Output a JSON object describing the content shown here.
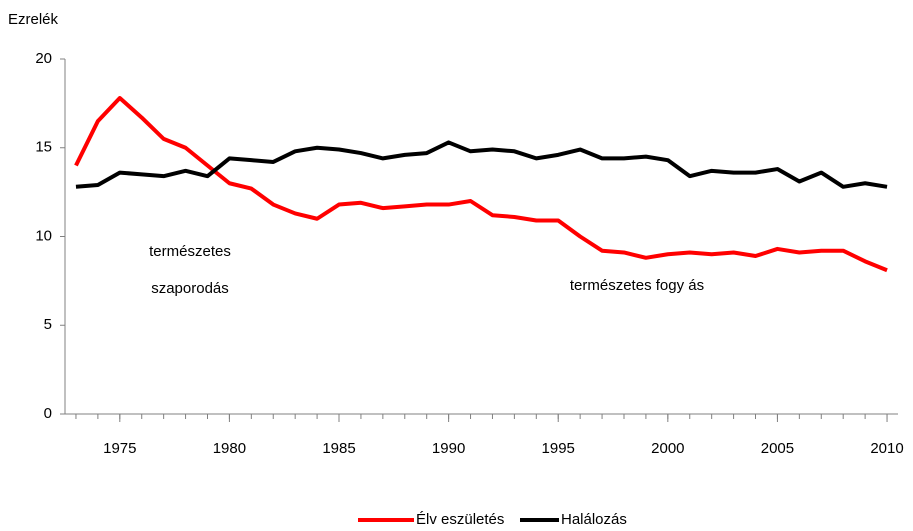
{
  "chart_data": {
    "type": "line",
    "y_label": "Ezrelék",
    "x": [
      1973,
      1974,
      1975,
      1976,
      1977,
      1978,
      1979,
      1980,
      1981,
      1982,
      1983,
      1984,
      1985,
      1986,
      1987,
      1988,
      1989,
      1990,
      1991,
      1992,
      1993,
      1994,
      1995,
      1996,
      1997,
      1998,
      1999,
      2000,
      2001,
      2002,
      2003,
      2004,
      2005,
      2006,
      2007,
      2008,
      2009,
      2010
    ],
    "series": [
      {
        "name": "Élv eszületés",
        "color": "#ff0000",
        "values": [
          14.0,
          16.5,
          17.8,
          16.7,
          15.5,
          15.0,
          14.0,
          13.0,
          12.7,
          11.8,
          11.3,
          11.0,
          11.8,
          11.9,
          11.6,
          11.7,
          11.8,
          11.8,
          12.0,
          11.2,
          11.1,
          10.9,
          10.9,
          10.0,
          9.2,
          9.1,
          8.8,
          9.0,
          9.1,
          9.0,
          9.1,
          8.9,
          9.3,
          9.1,
          9.2,
          9.2,
          8.6,
          8.1
        ]
      },
      {
        "name": "Halálozás",
        "color": "#000000",
        "values": [
          12.8,
          12.9,
          13.6,
          13.5,
          13.4,
          13.7,
          13.4,
          14.4,
          14.3,
          14.2,
          14.8,
          15.0,
          14.9,
          14.7,
          14.4,
          14.6,
          14.7,
          15.3,
          14.8,
          14.9,
          14.8,
          14.4,
          14.6,
          14.9,
          14.4,
          14.4,
          14.5,
          14.3,
          13.4,
          13.7,
          13.6,
          13.6,
          13.8,
          13.1,
          13.6,
          12.8,
          13.0,
          12.8
        ]
      }
    ],
    "xlim": [
      1972.5,
      2010.5
    ],
    "xticks": [
      1975,
      1980,
      1985,
      1990,
      1995,
      2000,
      2005,
      2010
    ],
    "ylim": [
      0,
      20
    ],
    "yticks": [
      0,
      5,
      10,
      15,
      20
    ],
    "grid": false,
    "annotations": [
      "természetes",
      "szaporodás",
      "természetes fogy ás"
    ]
  }
}
